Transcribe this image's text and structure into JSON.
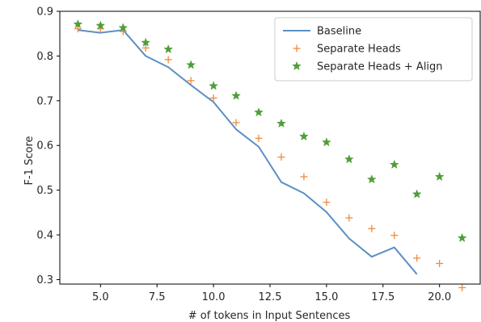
{
  "chart_data": {
    "type": "line",
    "xlabel": "# of tokens in Input Sentences",
    "ylabel": "F-1 Score",
    "xlim": [
      3.2,
      21.8
    ],
    "ylim": [
      0.29,
      0.9
    ],
    "xticks": [
      5.0,
      7.5,
      10.0,
      12.5,
      15.0,
      17.5,
      20.0
    ],
    "xtick_labels": [
      "5.0",
      "7.5",
      "10.0",
      "12.5",
      "15.0",
      "17.5",
      "20.0"
    ],
    "yticks": [
      0.3,
      0.4,
      0.5,
      0.6,
      0.7,
      0.8,
      0.9
    ],
    "ytick_labels": [
      "0.3",
      "0.4",
      "0.5",
      "0.6",
      "0.7",
      "0.8",
      "0.9"
    ],
    "grid": false,
    "legend_position": "top-right",
    "series": [
      {
        "name": "Baseline",
        "style": "line",
        "color": "#5b8fc4",
        "x": [
          4,
          5,
          6,
          7,
          8,
          9,
          10,
          11,
          12,
          13,
          14,
          15,
          16,
          17,
          18,
          19
        ],
        "y": [
          0.858,
          0.852,
          0.858,
          0.8,
          0.775,
          0.735,
          0.697,
          0.636,
          0.597,
          0.518,
          0.493,
          0.451,
          0.392,
          0.351,
          0.372,
          0.312
        ]
      },
      {
        "name": "Separate Heads",
        "style": "plus",
        "color": "#f08a3c",
        "x": [
          4,
          5,
          6,
          7,
          8,
          9,
          10,
          11,
          12,
          13,
          14,
          15,
          16,
          17,
          18,
          19,
          20,
          21
        ],
        "y": [
          0.861,
          0.861,
          0.855,
          0.818,
          0.792,
          0.745,
          0.706,
          0.651,
          0.616,
          0.574,
          0.53,
          0.473,
          0.438,
          0.414,
          0.399,
          0.348,
          0.336,
          0.282
        ]
      },
      {
        "name": "Separate Heads + Align",
        "style": "star",
        "color": "#4f9e3a",
        "x": [
          4,
          5,
          6,
          7,
          8,
          9,
          10,
          11,
          12,
          13,
          14,
          15,
          16,
          17,
          18,
          19,
          20,
          21
        ],
        "y": [
          0.871,
          0.868,
          0.863,
          0.83,
          0.815,
          0.78,
          0.733,
          0.711,
          0.674,
          0.649,
          0.62,
          0.607,
          0.569,
          0.524,
          0.557,
          0.491,
          0.53,
          0.393
        ]
      }
    ]
  }
}
